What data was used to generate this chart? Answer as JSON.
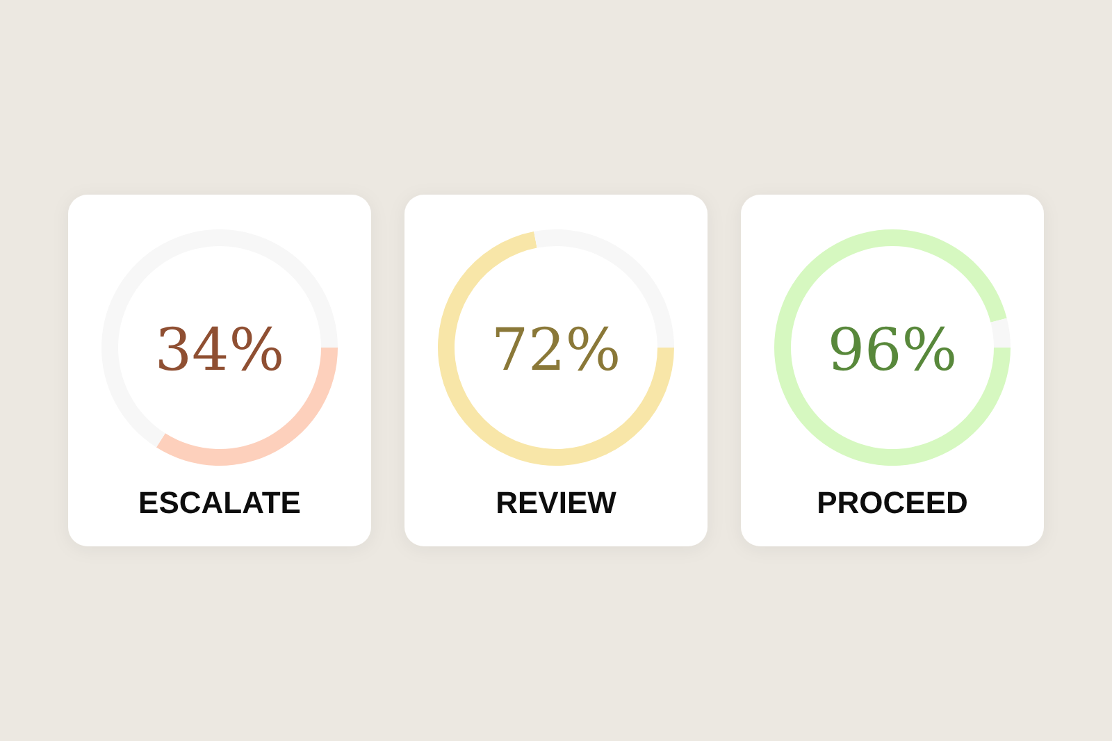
{
  "chart_data": [
    {
      "type": "donut",
      "title": "ESCALATE",
      "categories": [
        null,
        null
      ],
      "values": [
        34,
        66
      ],
      "colors": [
        "#fdd0bc",
        "#f7f7f7"
      ],
      "value_labels": [
        "34%",
        null
      ]
    },
    {
      "type": "donut",
      "title": "REVIEW",
      "categories": [
        null,
        null
      ],
      "values": [
        72,
        28
      ],
      "colors": [
        "#f8e6a8",
        "#f7f7f7"
      ],
      "value_labels": [
        "72%",
        null
      ]
    },
    {
      "type": "donut",
      "title": "PROCEED",
      "categories": [
        null,
        null
      ],
      "values": [
        96,
        4
      ],
      "colors": [
        "#d6f8c0",
        "#f7f7f7"
      ],
      "value_labels": [
        "96%",
        null
      ]
    }
  ]
}
